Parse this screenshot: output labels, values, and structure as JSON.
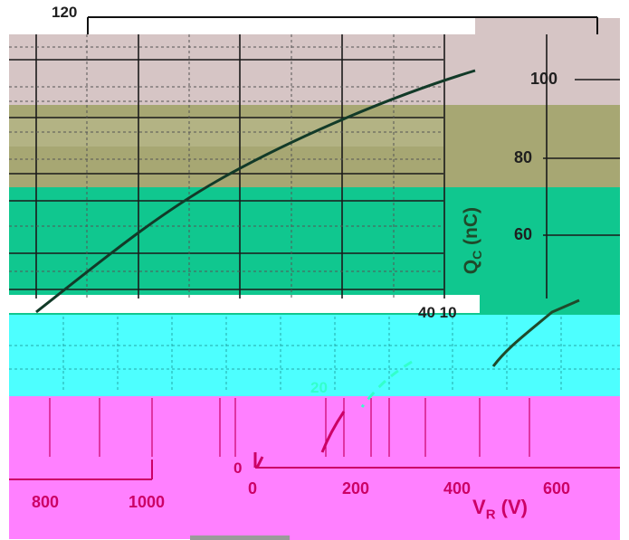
{
  "colors": {
    "band_top": "#d6c5c5",
    "band_olive": "#a7a773",
    "band_olive_light": "#c2c29b",
    "band_green": "#10c78f",
    "band_cyan": "#4dffff",
    "band_magenta": "#ff80ff",
    "curve": "#123a28",
    "dark_text": "#1f1f1f",
    "magenta_text": "#cc0066"
  },
  "chart_data": [
    {
      "type": "line",
      "title": "",
      "xlabel": "V_R (V)",
      "ylabel": "Q_C (nC)",
      "xlim": [
        0,
        1000
      ],
      "ylim": [
        0,
        120
      ],
      "x_ticks": [
        "0",
        "200",
        "400",
        "600",
        "800",
        "1000"
      ],
      "y_ticks": [
        "0",
        "20",
        "40",
        "60",
        "80",
        "100",
        "120"
      ],
      "grid": true,
      "series": [
        {
          "x": [
            0,
            50,
            100,
            150,
            200,
            300,
            400,
            500,
            600,
            700,
            800,
            900,
            1000
          ],
          "y": [
            0,
            10,
            18,
            25,
            31,
            42,
            51,
            59,
            66,
            73,
            80,
            86,
            92
          ]
        }
      ]
    }
  ],
  "labels": {
    "y_title_main": "Q",
    "y_title_sub": "C",
    "y_title_unit": "(nC)",
    "x_title_main": "V",
    "x_title_sub": "R",
    "x_title_unit": "(V)",
    "tick_y_120": "120",
    "tick_y_100": "100",
    "tick_y_80": "80",
    "tick_y_60": "60",
    "tick_y_40": "40 10",
    "tick_y_20": "20",
    "tick_y_0": "0",
    "tick_x_0": "0",
    "tick_x_200": "200",
    "tick_x_400": "400",
    "tick_x_600": "600",
    "tick_x_800": "800",
    "tick_x_1000": "1000"
  }
}
